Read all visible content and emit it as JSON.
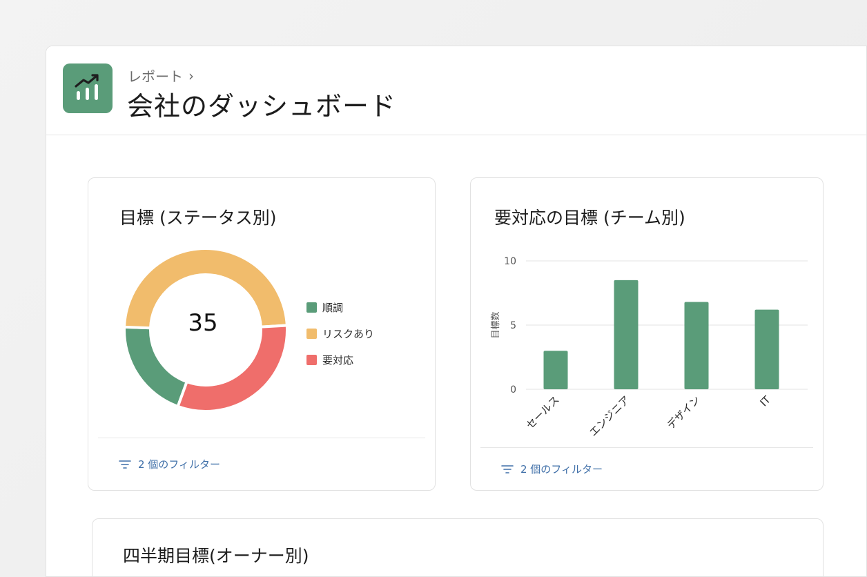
{
  "header": {
    "breadcrumb": "レポート",
    "breadcrumb_sep": "›",
    "title": "会社のダッシュボード",
    "icon": "chart-trend-icon",
    "icon_bg": "#5a9c79"
  },
  "cards": {
    "status": {
      "title": "目標 (ステータス別)",
      "footer": "2 個のフィルター"
    },
    "team": {
      "title": "要対応の目標 (チーム別)",
      "footer": "2 個のフィルター"
    },
    "owner": {
      "title": "四半期目標(オーナー別)"
    }
  },
  "chart_data": [
    {
      "type": "pie",
      "center_label": "35",
      "categories": [
        "順調",
        "リスクあり",
        "要対応"
      ],
      "values": [
        7,
        17,
        11
      ],
      "colors": [
        "#5a9c79",
        "#f1bc6c",
        "#ef6e6b"
      ],
      "legend": "right"
    },
    {
      "type": "bar",
      "categories": [
        "セールス",
        "エンジニア",
        "デザイン",
        "IT"
      ],
      "values": [
        3,
        8.5,
        6.8,
        6.2
      ],
      "ylabel": "目標数",
      "ylim": [
        0,
        10
      ],
      "yticks": [
        0,
        5,
        10
      ],
      "color": "#5a9c79",
      "grid": true
    }
  ]
}
